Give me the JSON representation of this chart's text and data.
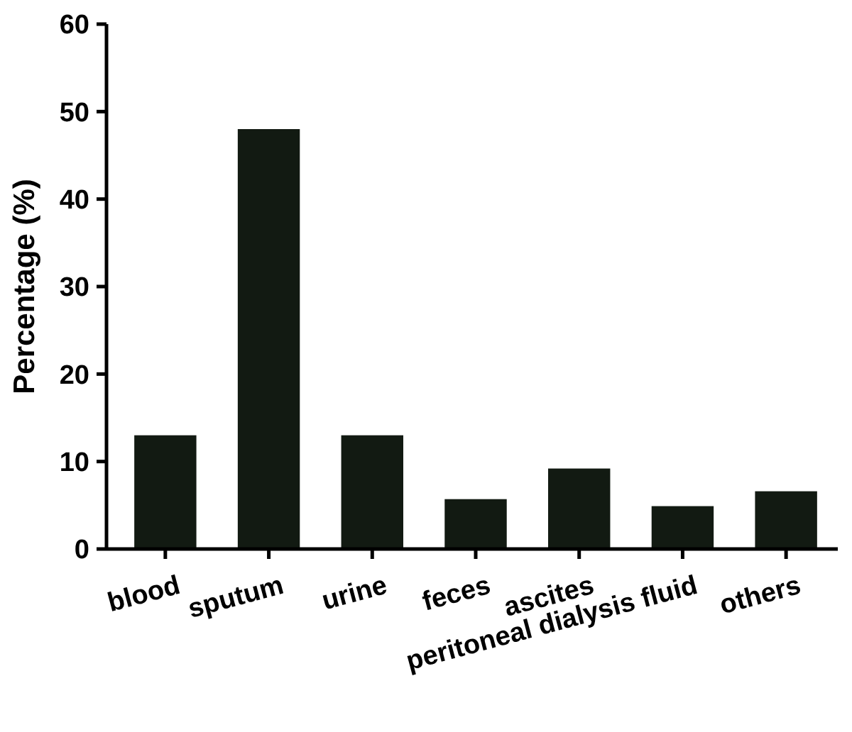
{
  "chart_data": {
    "type": "bar",
    "ylabel": "Percentage (%)",
    "categories": [
      "blood",
      "sputum",
      "urine",
      "feces",
      "ascites",
      "peritoneal dialysis fluid",
      "others"
    ],
    "values": [
      13,
      48,
      13,
      5.7,
      9.2,
      4.9,
      6.6
    ],
    "color": "#121a12",
    "ylim": [
      0,
      60
    ],
    "yticks": [
      0,
      10,
      20,
      30,
      40,
      50,
      60
    ],
    "grid": false
  }
}
